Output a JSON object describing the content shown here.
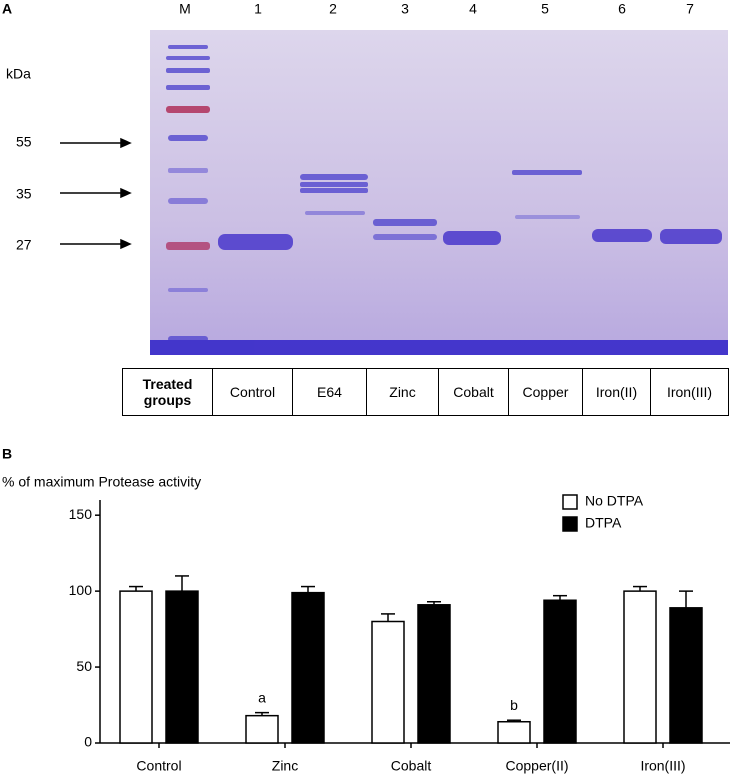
{
  "panel_a": {
    "label": "A",
    "lane_labels": [
      "M",
      "1",
      "2",
      "3",
      "4",
      "5",
      "6",
      "7"
    ],
    "size_unit": "kDa",
    "marker_sizes": [
      "55",
      "35",
      "27"
    ],
    "treatment_header": "Treated groups",
    "treatments": [
      "Control",
      "E64",
      "Zinc",
      "Cobalt",
      "Copper",
      "Iron(II)",
      "Iron(III)"
    ]
  },
  "chart_data": {
    "type": "bar",
    "panel_label": "B",
    "y_label": "% of maximum Protease activity",
    "categories": [
      "Control",
      "Zinc",
      "Cobalt",
      "Copper(II)",
      "Iron(III)"
    ],
    "series": [
      {
        "name": "No DTPA",
        "color": "#ffffff",
        "values": [
          100,
          18,
          80,
          14,
          100
        ],
        "errors": [
          3,
          2,
          5,
          1,
          3
        ],
        "annotations": [
          null,
          "a",
          null,
          "b",
          null
        ]
      },
      {
        "name": "DTPA",
        "color": "#000000",
        "values": [
          100,
          99,
          91,
          94,
          89
        ],
        "errors": [
          10,
          4,
          2,
          3,
          11
        ]
      }
    ],
    "ylim": [
      0,
      160
    ],
    "yticks": [
      0,
      50,
      100,
      150
    ],
    "legend": "upper right"
  }
}
